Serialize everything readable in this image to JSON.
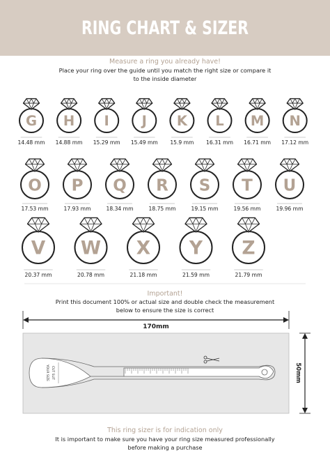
{
  "header": {
    "title": "RING CHART & SIZER"
  },
  "intro": {
    "heading": "Measure a ring you already have!",
    "lines": [
      "Place your ring over the guide until you match the right size or compare it",
      "to the inside diameter"
    ]
  },
  "rings": {
    "rows": [
      [
        {
          "letter": "G",
          "size": "14.48 mm"
        },
        {
          "letter": "H",
          "size": "14.88 mm"
        },
        {
          "letter": "I",
          "size": "15.29 mm"
        },
        {
          "letter": "J",
          "size": "15.49 mm"
        },
        {
          "letter": "K",
          "size": "15.9 mm"
        },
        {
          "letter": "L",
          "size": "16.31 mm"
        },
        {
          "letter": "M",
          "size": "16.71 mm"
        },
        {
          "letter": "N",
          "size": "17.12 mm"
        }
      ],
      [
        {
          "letter": "O",
          "size": "17.53 mm"
        },
        {
          "letter": "P",
          "size": "17.93 mm"
        },
        {
          "letter": "Q",
          "size": "18.34 mm"
        },
        {
          "letter": "R",
          "size": "18.75 mm"
        },
        {
          "letter": "S",
          "size": "19.15 mm"
        },
        {
          "letter": "T",
          "size": "19.56 mm"
        },
        {
          "letter": "U",
          "size": "19.96 mm"
        }
      ],
      [
        {
          "letter": "V",
          "size": "20.37 mm"
        },
        {
          "letter": "W",
          "size": "20.78 mm"
        },
        {
          "letter": "X",
          "size": "21.18 mm"
        },
        {
          "letter": "Y",
          "size": "21.59 mm"
        },
        {
          "letter": "Z",
          "size": "21.79 mm"
        }
      ]
    ]
  },
  "important": {
    "heading": "Important!",
    "lines": [
      "Print this document 100% or actual size and double check the measurement",
      "below to ensure the size is correct"
    ]
  },
  "sizer": {
    "width_label": "170mm",
    "height_label": "50mm",
    "your_size": "YOUR SIZE",
    "cut_slit": "CUT SLIT"
  },
  "footer": {
    "heading": "This ring sizer is for indication only",
    "lines": [
      "It is important to make sure you have your ring size measured professionally",
      "before making a purchase"
    ]
  }
}
